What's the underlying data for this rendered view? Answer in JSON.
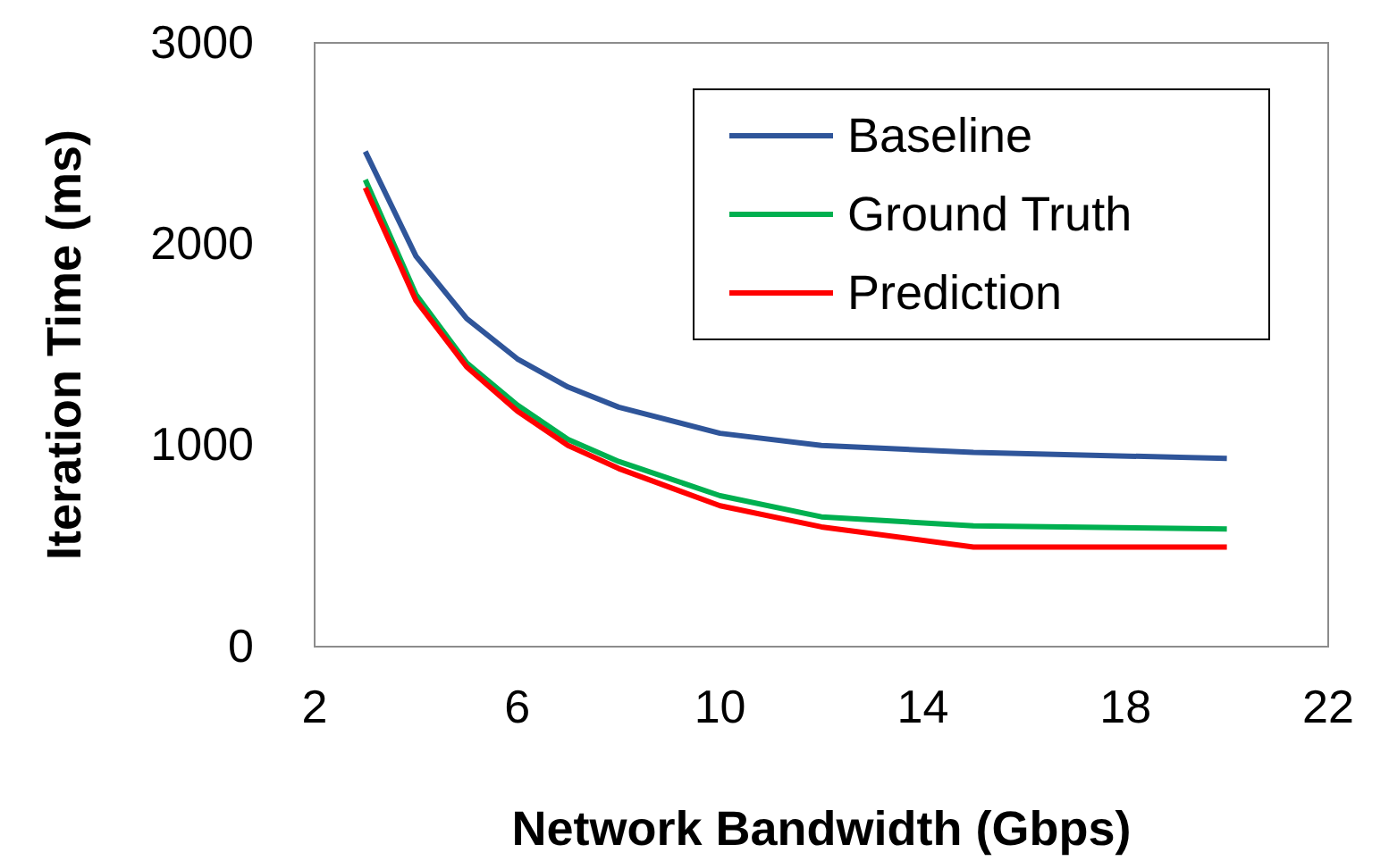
{
  "chart_data": {
    "type": "line",
    "xlabel": "Network Bandwidth (Gbps)",
    "ylabel": "Iteration Time (ms)",
    "x": [
      3,
      4,
      5,
      6,
      7,
      8,
      10,
      12,
      15,
      20
    ],
    "series": [
      {
        "name": "Baseline",
        "color": "#2f559a",
        "values": [
          2460,
          1940,
          1630,
          1430,
          1290,
          1190,
          1060,
          1000,
          965,
          935
        ]
      },
      {
        "name": "Ground Truth",
        "color": "#00b050",
        "values": [
          2320,
          1750,
          1410,
          1200,
          1030,
          920,
          750,
          645,
          600,
          585
        ]
      },
      {
        "name": "Prediction",
        "color": "#ff0000",
        "values": [
          2280,
          1720,
          1390,
          1170,
          1000,
          885,
          700,
          595,
          495,
          495
        ]
      }
    ],
    "xlim": [
      2,
      22
    ],
    "xticks": [
      2,
      6,
      10,
      14,
      18,
      22
    ],
    "ylim": [
      0,
      3000
    ],
    "yticks": [
      0,
      1000,
      2000,
      3000
    ],
    "grid": false,
    "legend": "top right",
    "marker": "none",
    "line_style": "solid"
  }
}
